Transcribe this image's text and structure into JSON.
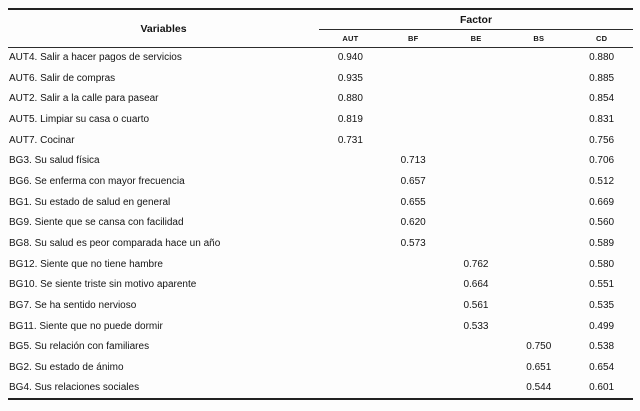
{
  "table": {
    "header": {
      "variables_label": "Variables",
      "factor_label": "Factor",
      "factor_columns": [
        "AUT",
        "BF",
        "BE",
        "BS",
        "CD"
      ]
    },
    "rows": [
      {
        "label": "AUT4. Salir a hacer pagos de servicios",
        "values": [
          "0.940",
          "",
          "",
          "",
          "0.880"
        ]
      },
      {
        "label": "AUT6. Salir de compras",
        "values": [
          "0.935",
          "",
          "",
          "",
          "0.885"
        ]
      },
      {
        "label": "AUT2. Salir a la calle para pasear",
        "values": [
          "0.880",
          "",
          "",
          "",
          "0.854"
        ]
      },
      {
        "label": "AUT5. Limpiar su casa o cuarto",
        "values": [
          "0.819",
          "",
          "",
          "",
          "0.831"
        ]
      },
      {
        "label": "AUT7. Cocinar",
        "values": [
          "0.731",
          "",
          "",
          "",
          "0.756"
        ]
      },
      {
        "label": "BG3. Su salud física",
        "values": [
          "",
          "0.713",
          "",
          "",
          "0.706"
        ]
      },
      {
        "label": "BG6. Se enferma con mayor frecuencia",
        "values": [
          "",
          "0.657",
          "",
          "",
          "0.512"
        ]
      },
      {
        "label": "BG1. Su estado de salud en general",
        "values": [
          "",
          "0.655",
          "",
          "",
          "0.669"
        ]
      },
      {
        "label": "BG9. Siente que se cansa con facilidad",
        "values": [
          "",
          "0.620",
          "",
          "",
          "0.560"
        ]
      },
      {
        "label": "BG8. Su salud es peor comparada hace un año",
        "values": [
          "",
          "0.573",
          "",
          "",
          "0.589"
        ]
      },
      {
        "label": "BG12. Siente que no tiene hambre",
        "values": [
          "",
          "",
          "0.762",
          "",
          "0.580"
        ]
      },
      {
        "label": "BG10. Se siente triste sin motivo aparente",
        "values": [
          "",
          "",
          "0.664",
          "",
          "0.551"
        ]
      },
      {
        "label": "BG7. Se ha sentido nervioso",
        "values": [
          "",
          "",
          "0.561",
          "",
          "0.535"
        ]
      },
      {
        "label": "BG11. Siente que no puede dormir",
        "values": [
          "",
          "",
          "0.533",
          "",
          "0.499"
        ]
      },
      {
        "label": "BG5. Su relación con familiares",
        "values": [
          "",
          "",
          "",
          "0.750",
          "0.538"
        ]
      },
      {
        "label": "BG2. Su estado de ánimo",
        "values": [
          "",
          "",
          "",
          "0.651",
          "0.654"
        ]
      },
      {
        "label": "BG4. Sus relaciones sociales",
        "values": [
          "",
          "",
          "",
          "0.544",
          "0.601"
        ]
      }
    ]
  },
  "colors": {
    "text": "#141414",
    "rule": "#2c2c2c",
    "background": "#fdfdfd"
  }
}
